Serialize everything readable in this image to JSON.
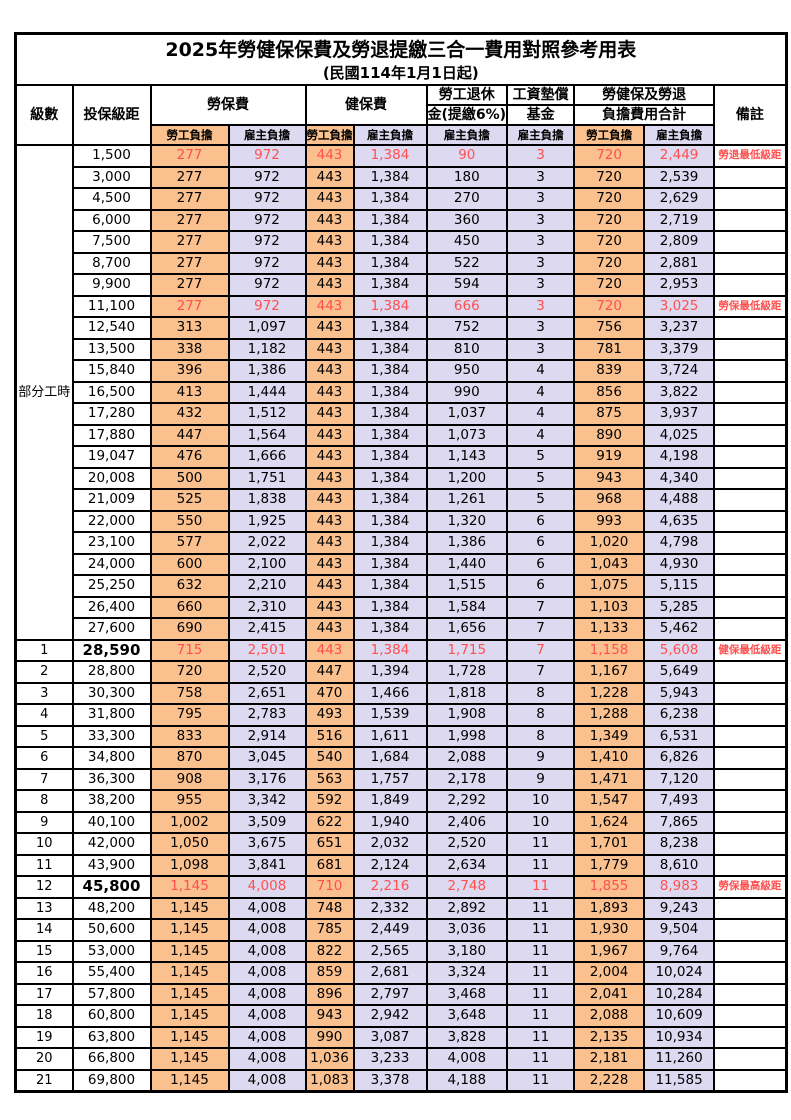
{
  "title": "2025年勞健保保費及勞退提繳三合一費用對照參考用表",
  "subtitle": "(民國114年1月1日起)",
  "colors": {
    "worker_bg": "#FAC08E",
    "employer_bg": "#DDD9F0",
    "highlight": "#FF5050",
    "border": "#000000"
  },
  "header": {
    "level": "級數",
    "bracket": "投保級距",
    "labor_fee": "勞保費",
    "health_fee": "健保費",
    "pension_line1": "勞工退休",
    "pension_line2": "金(提繳6%)",
    "wage_fund_line1": "工資墊償",
    "wage_fund_line2": "基金",
    "total_line1": "勞健保及勞退",
    "total_line2": "負擔費用合計",
    "remark": "備註",
    "worker_label": "勞工負擔",
    "employer_label": "雇主負擔"
  },
  "part_time_label": "部分工時",
  "part_time_row_count": 23,
  "row_format": [
    "level",
    "bracket",
    "labor_worker",
    "labor_employer",
    "health_worker",
    "health_employer",
    "pension_employer",
    "fund_employer",
    "total_worker",
    "total_employer",
    "remark",
    "highlight",
    "bold_bracket"
  ],
  "rows": [
    [
      null,
      "1,500",
      "277",
      "972",
      "443",
      "1,384",
      "90",
      "3",
      "720",
      "2,449",
      "勞退最低級距",
      true,
      false
    ],
    [
      null,
      "3,000",
      "277",
      "972",
      "443",
      "1,384",
      "180",
      "3",
      "720",
      "2,539",
      "",
      false,
      false
    ],
    [
      null,
      "4,500",
      "277",
      "972",
      "443",
      "1,384",
      "270",
      "3",
      "720",
      "2,629",
      "",
      false,
      false
    ],
    [
      null,
      "6,000",
      "277",
      "972",
      "443",
      "1,384",
      "360",
      "3",
      "720",
      "2,719",
      "",
      false,
      false
    ],
    [
      null,
      "7,500",
      "277",
      "972",
      "443",
      "1,384",
      "450",
      "3",
      "720",
      "2,809",
      "",
      false,
      false
    ],
    [
      null,
      "8,700",
      "277",
      "972",
      "443",
      "1,384",
      "522",
      "3",
      "720",
      "2,881",
      "",
      false,
      false
    ],
    [
      null,
      "9,900",
      "277",
      "972",
      "443",
      "1,384",
      "594",
      "3",
      "720",
      "2,953",
      "",
      false,
      false
    ],
    [
      null,
      "11,100",
      "277",
      "972",
      "443",
      "1,384",
      "666",
      "3",
      "720",
      "3,025",
      "勞保最低級距",
      true,
      false
    ],
    [
      null,
      "12,540",
      "313",
      "1,097",
      "443",
      "1,384",
      "752",
      "3",
      "756",
      "3,237",
      "",
      false,
      false
    ],
    [
      null,
      "13,500",
      "338",
      "1,182",
      "443",
      "1,384",
      "810",
      "3",
      "781",
      "3,379",
      "",
      false,
      false
    ],
    [
      null,
      "15,840",
      "396",
      "1,386",
      "443",
      "1,384",
      "950",
      "4",
      "839",
      "3,724",
      "",
      false,
      false
    ],
    [
      null,
      "16,500",
      "413",
      "1,444",
      "443",
      "1,384",
      "990",
      "4",
      "856",
      "3,822",
      "",
      false,
      false
    ],
    [
      null,
      "17,280",
      "432",
      "1,512",
      "443",
      "1,384",
      "1,037",
      "4",
      "875",
      "3,937",
      "",
      false,
      false
    ],
    [
      null,
      "17,880",
      "447",
      "1,564",
      "443",
      "1,384",
      "1,073",
      "4",
      "890",
      "4,025",
      "",
      false,
      false
    ],
    [
      null,
      "19,047",
      "476",
      "1,666",
      "443",
      "1,384",
      "1,143",
      "5",
      "919",
      "4,198",
      "",
      false,
      false
    ],
    [
      null,
      "20,008",
      "500",
      "1,751",
      "443",
      "1,384",
      "1,200",
      "5",
      "943",
      "4,340",
      "",
      false,
      false
    ],
    [
      null,
      "21,009",
      "525",
      "1,838",
      "443",
      "1,384",
      "1,261",
      "5",
      "968",
      "4,488",
      "",
      false,
      false
    ],
    [
      null,
      "22,000",
      "550",
      "1,925",
      "443",
      "1,384",
      "1,320",
      "6",
      "993",
      "4,635",
      "",
      false,
      false
    ],
    [
      null,
      "23,100",
      "577",
      "2,022",
      "443",
      "1,384",
      "1,386",
      "6",
      "1,020",
      "4,798",
      "",
      false,
      false
    ],
    [
      null,
      "24,000",
      "600",
      "2,100",
      "443",
      "1,384",
      "1,440",
      "6",
      "1,043",
      "4,930",
      "",
      false,
      false
    ],
    [
      null,
      "25,250",
      "632",
      "2,210",
      "443",
      "1,384",
      "1,515",
      "6",
      "1,075",
      "5,115",
      "",
      false,
      false
    ],
    [
      null,
      "26,400",
      "660",
      "2,310",
      "443",
      "1,384",
      "1,584",
      "7",
      "1,103",
      "5,285",
      "",
      false,
      false
    ],
    [
      null,
      "27,600",
      "690",
      "2,415",
      "443",
      "1,384",
      "1,656",
      "7",
      "1,133",
      "5,462",
      "",
      false,
      false
    ],
    [
      "1",
      "28,590",
      "715",
      "2,501",
      "443",
      "1,384",
      "1,715",
      "7",
      "1,158",
      "5,608",
      "健保最低級距",
      true,
      true
    ],
    [
      "2",
      "28,800",
      "720",
      "2,520",
      "447",
      "1,394",
      "1,728",
      "7",
      "1,167",
      "5,649",
      "",
      false,
      false
    ],
    [
      "3",
      "30,300",
      "758",
      "2,651",
      "470",
      "1,466",
      "1,818",
      "8",
      "1,228",
      "5,943",
      "",
      false,
      false
    ],
    [
      "4",
      "31,800",
      "795",
      "2,783",
      "493",
      "1,539",
      "1,908",
      "8",
      "1,288",
      "6,238",
      "",
      false,
      false
    ],
    [
      "5",
      "33,300",
      "833",
      "2,914",
      "516",
      "1,611",
      "1,998",
      "8",
      "1,349",
      "6,531",
      "",
      false,
      false
    ],
    [
      "6",
      "34,800",
      "870",
      "3,045",
      "540",
      "1,684",
      "2,088",
      "9",
      "1,410",
      "6,826",
      "",
      false,
      false
    ],
    [
      "7",
      "36,300",
      "908",
      "3,176",
      "563",
      "1,757",
      "2,178",
      "9",
      "1,471",
      "7,120",
      "",
      false,
      false
    ],
    [
      "8",
      "38,200",
      "955",
      "3,342",
      "592",
      "1,849",
      "2,292",
      "10",
      "1,547",
      "7,493",
      "",
      false,
      false
    ],
    [
      "9",
      "40,100",
      "1,002",
      "3,509",
      "622",
      "1,940",
      "2,406",
      "10",
      "1,624",
      "7,865",
      "",
      false,
      false
    ],
    [
      "10",
      "42,000",
      "1,050",
      "3,675",
      "651",
      "2,032",
      "2,520",
      "11",
      "1,701",
      "8,238",
      "",
      false,
      false
    ],
    [
      "11",
      "43,900",
      "1,098",
      "3,841",
      "681",
      "2,124",
      "2,634",
      "11",
      "1,779",
      "8,610",
      "",
      false,
      false
    ],
    [
      "12",
      "45,800",
      "1,145",
      "4,008",
      "710",
      "2,216",
      "2,748",
      "11",
      "1,855",
      "8,983",
      "勞保最高級距",
      true,
      true
    ],
    [
      "13",
      "48,200",
      "1,145",
      "4,008",
      "748",
      "2,332",
      "2,892",
      "11",
      "1,893",
      "9,243",
      "",
      false,
      false
    ],
    [
      "14",
      "50,600",
      "1,145",
      "4,008",
      "785",
      "2,449",
      "3,036",
      "11",
      "1,930",
      "9,504",
      "",
      false,
      false
    ],
    [
      "15",
      "53,000",
      "1,145",
      "4,008",
      "822",
      "2,565",
      "3,180",
      "11",
      "1,967",
      "9,764",
      "",
      false,
      false
    ],
    [
      "16",
      "55,400",
      "1,145",
      "4,008",
      "859",
      "2,681",
      "3,324",
      "11",
      "2,004",
      "10,024",
      "",
      false,
      false
    ],
    [
      "17",
      "57,800",
      "1,145",
      "4,008",
      "896",
      "2,797",
      "3,468",
      "11",
      "2,041",
      "10,284",
      "",
      false,
      false
    ],
    [
      "18",
      "60,800",
      "1,145",
      "4,008",
      "943",
      "2,942",
      "3,648",
      "11",
      "2,088",
      "10,609",
      "",
      false,
      false
    ],
    [
      "19",
      "63,800",
      "1,145",
      "4,008",
      "990",
      "3,087",
      "3,828",
      "11",
      "2,135",
      "10,934",
      "",
      false,
      false
    ],
    [
      "20",
      "66,800",
      "1,145",
      "4,008",
      "1,036",
      "3,233",
      "4,008",
      "11",
      "2,181",
      "11,260",
      "",
      false,
      false
    ],
    [
      "21",
      "69,800",
      "1,145",
      "4,008",
      "1,083",
      "3,378",
      "4,188",
      "11",
      "2,228",
      "11,585",
      "",
      false,
      false
    ]
  ]
}
